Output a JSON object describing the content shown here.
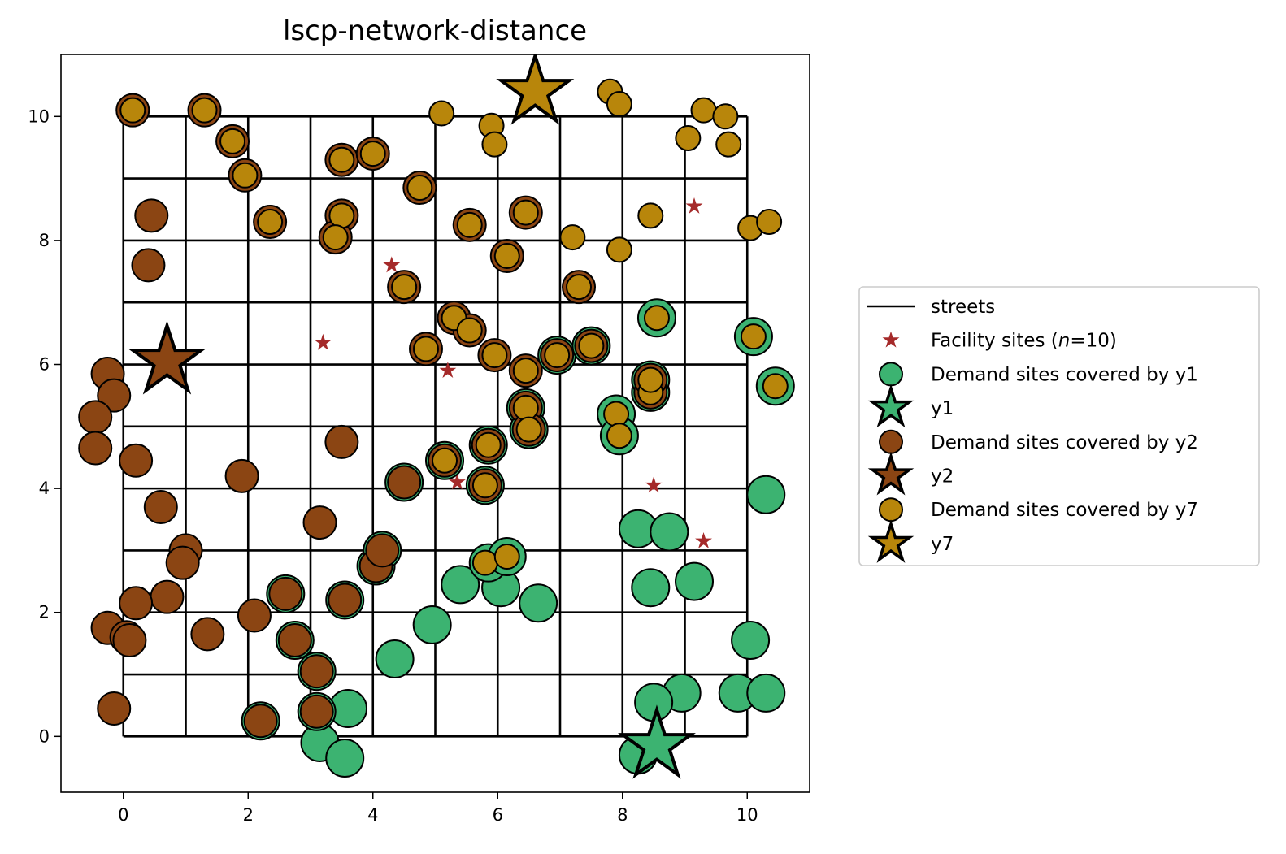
{
  "chart_data": {
    "type": "scatter",
    "title": "lscp-network-distance",
    "xlabel": "",
    "ylabel": "",
    "xlim": [
      -1,
      11
    ],
    "ylim": [
      -0.9,
      11
    ],
    "xticks": [
      0,
      2,
      4,
      6,
      8,
      10
    ],
    "yticks": [
      0,
      2,
      4,
      6,
      8,
      10
    ],
    "legend_position": "center-right-outside",
    "legend": [
      {
        "label": "streets",
        "kind": "line"
      },
      {
        "label": "Facility sites (n=10)",
        "label_prefix": "Facility sites (",
        "label_italic": "n",
        "label_suffix": "=10)",
        "kind": "small-star"
      },
      {
        "label": "Demand sites covered by y1",
        "kind": "circle",
        "color": "#3cb371"
      },
      {
        "label": "y1",
        "kind": "big-star",
        "color": "#3cb371"
      },
      {
        "label": "Demand sites covered by y2",
        "kind": "circle",
        "color": "#8b4513"
      },
      {
        "label": "y2",
        "kind": "big-star",
        "color": "#8b4513"
      },
      {
        "label": "Demand sites covered by y7",
        "kind": "circle",
        "color": "#b8860b"
      },
      {
        "label": "y7",
        "kind": "big-star",
        "color": "#b8860b"
      }
    ],
    "colors": {
      "y1": "#3cb371",
      "y2": "#8b4513",
      "y7": "#b8860b",
      "facility": "#a52a2a",
      "streets": "#000000"
    },
    "streets": {
      "x_lines": [
        0,
        1,
        2,
        3,
        4,
        5,
        6,
        7,
        8,
        9,
        10
      ],
      "y_lines": [
        0,
        1,
        2,
        3,
        4,
        5,
        6,
        7,
        8,
        9,
        10
      ],
      "range": [
        0,
        10
      ]
    },
    "facility_sites": [
      [
        4.3,
        7.6
      ],
      [
        3.2,
        6.35
      ],
      [
        5.2,
        5.9
      ],
      [
        5.35,
        4.1
      ],
      [
        9.15,
        8.55
      ],
      [
        8.5,
        4.05
      ],
      [
        9.3,
        3.15
      ],
      [
        0.7,
        6.05
      ],
      [
        8.55,
        -0.15
      ],
      [
        6.6,
        10.4
      ]
    ],
    "selected_facilities": [
      {
        "name": "y1",
        "x": 8.55,
        "y": -0.15,
        "color": "#3cb371"
      },
      {
        "name": "y2",
        "x": 0.7,
        "y": 6.05,
        "color": "#8b4513"
      },
      {
        "name": "y7",
        "x": 6.6,
        "y": 10.4,
        "color": "#b8860b"
      }
    ],
    "series": [
      {
        "name": "Demand sites covered by y1",
        "color": "#3cb371",
        "points": [
          [
            3.15,
            -0.1
          ],
          [
            3.55,
            -0.35
          ],
          [
            3.6,
            0.45
          ],
          [
            3.1,
            0.4
          ],
          [
            3.1,
            1.05
          ],
          [
            2.75,
            1.55
          ],
          [
            2.2,
            0.25
          ],
          [
            2.6,
            2.3
          ],
          [
            3.55,
            2.2
          ],
          [
            4.05,
            2.75
          ],
          [
            4.15,
            3.0
          ],
          [
            4.35,
            1.25
          ],
          [
            4.95,
            1.8
          ],
          [
            5.4,
            2.45
          ],
          [
            6.05,
            2.4
          ],
          [
            5.85,
            2.8
          ],
          [
            6.15,
            2.9
          ],
          [
            6.65,
            2.15
          ],
          [
            4.5,
            4.1
          ],
          [
            5.15,
            4.45
          ],
          [
            5.8,
            4.05
          ],
          [
            5.85,
            4.7
          ],
          [
            6.45,
            5.3
          ],
          [
            6.5,
            4.95
          ],
          [
            6.95,
            6.15
          ],
          [
            7.5,
            6.3
          ],
          [
            7.9,
            5.2
          ],
          [
            7.95,
            4.85
          ],
          [
            8.45,
            5.55
          ],
          [
            8.45,
            5.75
          ],
          [
            8.55,
            6.75
          ],
          [
            10.1,
            6.45
          ],
          [
            10.45,
            5.65
          ],
          [
            10.3,
            3.9
          ],
          [
            8.25,
            3.35
          ],
          [
            8.75,
            3.3
          ],
          [
            8.45,
            2.4
          ],
          [
            9.15,
            2.5
          ],
          [
            10.05,
            1.55
          ],
          [
            9.85,
            0.7
          ],
          [
            10.3,
            0.7
          ],
          [
            8.95,
            0.7
          ],
          [
            8.5,
            0.55
          ],
          [
            8.25,
            -0.3
          ]
        ]
      },
      {
        "name": "Demand sites covered by y2",
        "color": "#8b4513",
        "points": [
          [
            0.15,
            10.1
          ],
          [
            1.3,
            10.1
          ],
          [
            1.75,
            9.6
          ],
          [
            1.95,
            9.05
          ],
          [
            2.35,
            8.3
          ],
          [
            3.5,
            9.3
          ],
          [
            3.5,
            8.4
          ],
          [
            3.4,
            8.05
          ],
          [
            4.0,
            9.4
          ],
          [
            4.75,
            8.85
          ],
          [
            5.55,
            8.25
          ],
          [
            6.45,
            8.45
          ],
          [
            6.15,
            7.75
          ],
          [
            4.5,
            7.25
          ],
          [
            7.3,
            7.25
          ],
          [
            5.3,
            6.75
          ],
          [
            5.55,
            6.55
          ],
          [
            4.85,
            6.25
          ],
          [
            5.95,
            6.15
          ],
          [
            6.45,
            5.9
          ],
          [
            0.45,
            8.4
          ],
          [
            0.4,
            7.6
          ],
          [
            -0.25,
            5.85
          ],
          [
            -0.15,
            5.5
          ],
          [
            -0.45,
            5.15
          ],
          [
            -0.45,
            4.65
          ],
          [
            0.2,
            4.45
          ],
          [
            0.6,
            3.7
          ],
          [
            1.9,
            4.2
          ],
          [
            3.5,
            4.75
          ],
          [
            3.15,
            3.45
          ],
          [
            1.0,
            3.0
          ],
          [
            0.95,
            2.8
          ],
          [
            0.7,
            2.25
          ],
          [
            0.2,
            2.15
          ],
          [
            -0.25,
            1.75
          ],
          [
            0.05,
            1.6
          ],
          [
            0.1,
            1.55
          ],
          [
            1.35,
            1.65
          ],
          [
            2.1,
            1.95
          ],
          [
            2.75,
            1.55
          ],
          [
            3.1,
            1.05
          ],
          [
            2.6,
            2.3
          ],
          [
            3.55,
            2.2
          ],
          [
            4.05,
            2.75
          ],
          [
            4.15,
            3.0
          ],
          [
            3.1,
            0.4
          ],
          [
            2.2,
            0.25
          ],
          [
            -0.15,
            0.45
          ],
          [
            4.5,
            4.1
          ],
          [
            5.15,
            4.45
          ],
          [
            5.8,
            4.05
          ],
          [
            5.85,
            4.7
          ],
          [
            6.45,
            5.3
          ],
          [
            6.5,
            4.95
          ],
          [
            6.95,
            6.15
          ],
          [
            7.5,
            6.3
          ],
          [
            8.45,
            5.55
          ],
          [
            8.45,
            5.75
          ]
        ]
      },
      {
        "name": "Demand sites covered by y7",
        "color": "#b8860b",
        "points": [
          [
            0.15,
            10.1
          ],
          [
            1.3,
            10.1
          ],
          [
            1.75,
            9.6
          ],
          [
            1.95,
            9.05
          ],
          [
            2.35,
            8.3
          ],
          [
            3.5,
            9.3
          ],
          [
            3.5,
            8.4
          ],
          [
            3.4,
            8.05
          ],
          [
            4.0,
            9.4
          ],
          [
            4.75,
            8.85
          ],
          [
            5.1,
            10.05
          ],
          [
            5.9,
            9.85
          ],
          [
            5.95,
            9.55
          ],
          [
            5.55,
            8.25
          ],
          [
            6.45,
            8.45
          ],
          [
            6.15,
            7.75
          ],
          [
            7.2,
            8.05
          ],
          [
            7.8,
            10.4
          ],
          [
            7.95,
            10.2
          ],
          [
            8.45,
            8.4
          ],
          [
            7.95,
            7.85
          ],
          [
            9.05,
            9.65
          ],
          [
            9.3,
            10.1
          ],
          [
            9.65,
            10.0
          ],
          [
            9.7,
            9.55
          ],
          [
            10.05,
            8.2
          ],
          [
            10.35,
            8.3
          ],
          [
            4.5,
            7.25
          ],
          [
            7.3,
            7.25
          ],
          [
            5.3,
            6.75
          ],
          [
            5.55,
            6.55
          ],
          [
            4.85,
            6.25
          ],
          [
            5.95,
            6.15
          ],
          [
            6.45,
            5.9
          ],
          [
            6.95,
            6.15
          ],
          [
            7.5,
            6.3
          ],
          [
            8.55,
            6.75
          ],
          [
            10.1,
            6.45
          ],
          [
            10.45,
            5.65
          ],
          [
            8.45,
            5.55
          ],
          [
            8.45,
            5.75
          ],
          [
            7.9,
            5.2
          ],
          [
            7.95,
            4.85
          ],
          [
            6.45,
            5.3
          ],
          [
            6.5,
            4.95
          ],
          [
            5.85,
            4.7
          ],
          [
            5.15,
            4.45
          ],
          [
            5.8,
            4.05
          ],
          [
            5.8,
            2.8
          ],
          [
            6.15,
            2.9
          ]
        ]
      }
    ]
  }
}
